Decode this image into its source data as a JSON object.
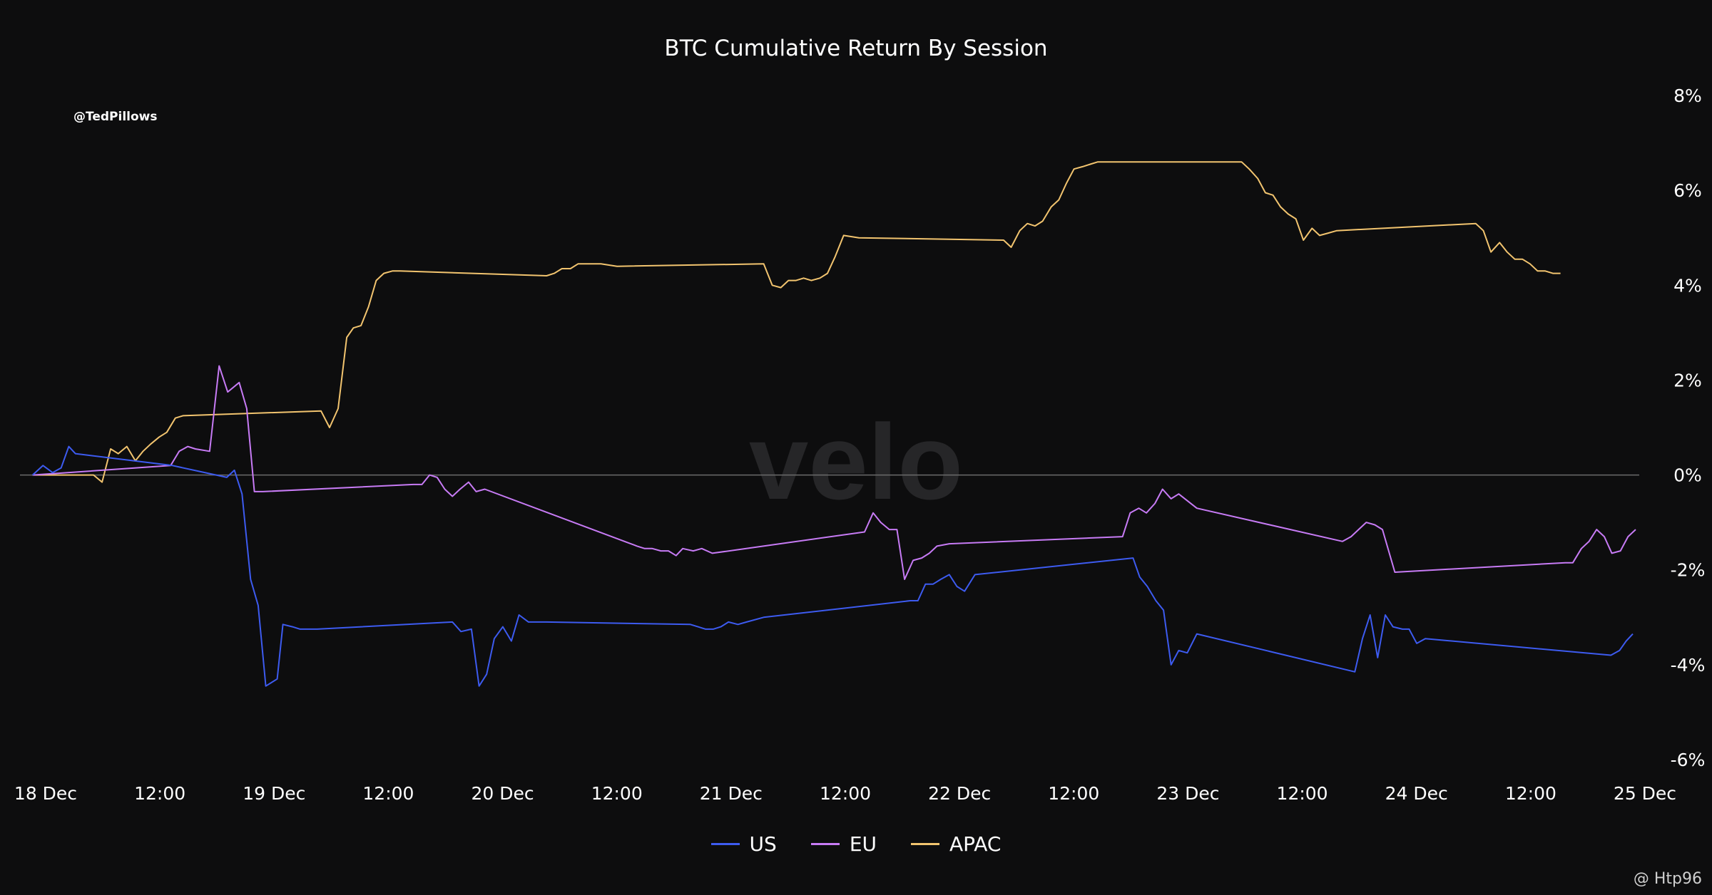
{
  "header": {
    "title": "BTC Cumulative Return By Session",
    "handle": "@TedPillows"
  },
  "watermark": "velo",
  "corner_mark": "@ Htp96",
  "colors": {
    "background": "#0d0d0e",
    "US": "#3d5bf0",
    "EU": "#c77bf5",
    "APAC": "#f2c46f",
    "zero_line": "#6b6b6b"
  },
  "chart_data": {
    "type": "line",
    "title": "BTC Cumulative Return By Session",
    "x_unit": "hours since 18 Dec 00:00",
    "xlim": [
      0,
      168
    ],
    "ylim": [
      -6,
      8
    ],
    "y_ticks": [
      8,
      6,
      4,
      2,
      0,
      -2,
      -4,
      -6
    ],
    "y_tick_labels": [
      "8%",
      "6%",
      "4%",
      "2%",
      "0%",
      "-2%",
      "-4%",
      "-6%"
    ],
    "y_axis_side": "right",
    "x_ticks": [
      0,
      12,
      24,
      36,
      48,
      60,
      72,
      84,
      96,
      108,
      120,
      132,
      144,
      156,
      168
    ],
    "x_tick_labels": [
      "18 Dec",
      "12:00",
      "19 Dec",
      "12:00",
      "20 Dec",
      "12:00",
      "21 Dec",
      "12:00",
      "22 Dec",
      "12:00",
      "23 Dec",
      "12:00",
      "24 Dec",
      "12:00",
      "25 Dec"
    ],
    "grid": false,
    "zero_line": true,
    "legend_position": "bottom-center",
    "series": [
      {
        "name": "US",
        "x": [
          -0.7,
          0.4,
          1.4,
          2.3,
          3.1,
          3.8,
          14.0,
          19.7,
          20.5,
          21.3,
          22.2,
          23.0,
          23.8,
          25.0,
          25.6,
          26.6,
          27.4,
          29.2,
          43.4,
          44.3,
          45.4,
          46.2,
          47.0,
          47.8,
          48.7,
          49.6,
          50.4,
          51.4,
          52.1,
          53.3,
          68.4,
          69.2,
          70.0,
          70.8,
          71.6,
          72.4,
          73.4,
          74.3,
          76.1,
          91.5,
          92.3,
          93.1,
          93.9,
          94.7,
          95.6,
          96.4,
          97.2,
          98.3,
          114.9,
          115.6,
          116.4,
          117.3,
          118.1,
          118.9,
          119.7,
          120.6,
          121.6,
          138.2,
          139.0,
          139.8,
          140.6,
          141.4,
          142.2,
          143.2,
          143.9,
          144.7,
          145.6,
          165.1,
          166.0,
          166.7,
          167.4
        ],
        "y": [
          0,
          0.2,
          0.05,
          0.15,
          0.6,
          0.45,
          0.2,
          -0.05,
          0.1,
          -0.4,
          -2.2,
          -2.75,
          -4.45,
          -4.3,
          -3.15,
          -3.2,
          -3.25,
          -3.25,
          -3.1,
          -3.3,
          -3.25,
          -4.45,
          -4.2,
          -3.45,
          -3.2,
          -3.5,
          -2.95,
          -3.1,
          -3.1,
          -3.1,
          -3.15,
          -3.2,
          -3.25,
          -3.25,
          -3.2,
          -3.1,
          -3.15,
          -3.1,
          -3.0,
          -2.65,
          -2.65,
          -2.3,
          -2.3,
          -2.2,
          -2.1,
          -2.35,
          -2.45,
          -2.1,
          -1.75,
          -2.15,
          -2.35,
          -2.65,
          -2.85,
          -4.0,
          -3.7,
          -3.75,
          -3.35,
          -4.15,
          -3.45,
          -2.95,
          -3.85,
          -2.95,
          -3.2,
          -3.25,
          -3.25,
          -3.55,
          -3.45,
          -3.8,
          -3.7,
          -3.5,
          -3.35
        ]
      },
      {
        "name": "EU",
        "x": [
          -0.7,
          13.8,
          14.7,
          15.6,
          16.4,
          17.9,
          18.9,
          19.8,
          21.0,
          21.8,
          22.6,
          23.5,
          39.3,
          40.2,
          41.0,
          41.8,
          42.6,
          43.4,
          44.2,
          45.1,
          45.9,
          46.8,
          62.8,
          63.6,
          64.4,
          65.3,
          66.1,
          66.9,
          67.6,
          68.7,
          69.6,
          70.7,
          86.7,
          87.6,
          88.4,
          89.3,
          90.1,
          90.9,
          91.8,
          92.7,
          93.5,
          94.3,
          95.6,
          113.8,
          114.6,
          115.5,
          116.3,
          117.2,
          118.0,
          118.9,
          119.7,
          121.6,
          136.9,
          137.8,
          138.6,
          139.4,
          140.3,
          141.1,
          142.4,
          160.3,
          161.1,
          162.0,
          162.8,
          163.6,
          164.4,
          165.2,
          166.1,
          166.9,
          167.7
        ],
        "y": [
          0,
          0.2,
          0.5,
          0.6,
          0.55,
          0.5,
          2.3,
          1.75,
          1.95,
          1.4,
          -0.35,
          -0.35,
          -0.2,
          -0.2,
          0,
          -0.05,
          -0.3,
          -0.45,
          -0.3,
          -0.15,
          -0.35,
          -0.3,
          -1.5,
          -1.55,
          -1.55,
          -1.6,
          -1.6,
          -1.7,
          -1.55,
          -1.6,
          -1.55,
          -1.65,
          -1.2,
          -0.8,
          -1.0,
          -1.15,
          -1.15,
          -2.2,
          -1.8,
          -1.75,
          -1.65,
          -1.5,
          -1.45,
          -1.3,
          -0.8,
          -0.7,
          -0.8,
          -0.6,
          -0.3,
          -0.5,
          -0.4,
          -0.7,
          -1.4,
          -1.3,
          -1.15,
          -1.0,
          -1.05,
          -1.15,
          -2.05,
          -1.85,
          -1.85,
          -1.55,
          -1.4,
          -1.15,
          -1.3,
          -1.65,
          -1.6,
          -1.3,
          -1.15
        ]
      },
      {
        "name": "APAC",
        "x": [
          -0.7,
          5.7,
          6.6,
          7.5,
          8.3,
          9.2,
          10.1,
          10.9,
          11.7,
          12.6,
          13.4,
          14.3,
          15.1,
          29.6,
          30.5,
          31.4,
          32.3,
          33.0,
          33.8,
          34.6,
          35.4,
          36.2,
          37.1,
          37.9,
          53.3,
          54.1,
          54.9,
          55.8,
          56.6,
          57.4,
          58.3,
          59.0,
          60.7,
          76.1,
          77.0,
          77.9,
          78.7,
          79.5,
          80.3,
          81.1,
          82.0,
          82.8,
          83.6,
          84.5,
          86.1,
          101.3,
          102.1,
          103.0,
          103.8,
          104.6,
          105.4,
          106.3,
          107.1,
          107.9,
          108.7,
          109.6,
          110.4,
          111.2,
          126.3,
          127.1,
          128.0,
          128.8,
          129.6,
          130.4,
          131.2,
          132.0,
          132.8,
          133.7,
          134.5,
          135.4,
          136.3,
          150.9,
          151.7,
          152.5,
          153.4,
          154.2,
          155.0,
          155.8,
          156.6,
          157.4,
          158.2,
          159.0,
          159.8
        ],
        "y": [
          0,
          0,
          -0.15,
          0.55,
          0.45,
          0.6,
          0.3,
          0.5,
          0.65,
          0.8,
          0.9,
          1.2,
          1.25,
          1.35,
          1.0,
          1.4,
          2.9,
          3.1,
          3.15,
          3.55,
          4.1,
          4.25,
          4.3,
          4.3,
          4.2,
          4.25,
          4.35,
          4.35,
          4.45,
          4.45,
          4.45,
          4.45,
          4.4,
          4.45,
          4.0,
          3.95,
          4.1,
          4.1,
          4.15,
          4.1,
          4.15,
          4.25,
          4.6,
          5.05,
          5.0,
          4.95,
          4.8,
          5.15,
          5.3,
          5.25,
          5.35,
          5.65,
          5.8,
          6.15,
          6.45,
          6.5,
          6.55,
          6.6,
          6.6,
          6.45,
          6.25,
          5.95,
          5.9,
          5.65,
          5.5,
          5.4,
          4.95,
          5.2,
          5.05,
          5.1,
          5.15,
          5.3,
          5.15,
          4.7,
          4.9,
          4.7,
          4.55,
          4.55,
          4.45,
          4.3,
          4.3,
          4.25,
          4.25
        ]
      }
    ]
  }
}
